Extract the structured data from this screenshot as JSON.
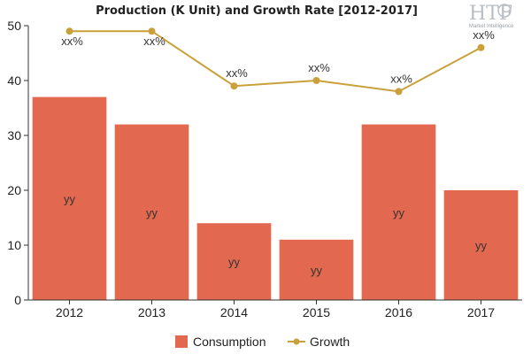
{
  "chart_data": {
    "type": "bar",
    "title": "Production (K Unit) and Growth Rate [2012-2017]",
    "categories": [
      "2012",
      "2013",
      "2014",
      "2015",
      "2016",
      "2017"
    ],
    "ylim": [
      0,
      50
    ],
    "yticks": [
      0,
      10,
      20,
      30,
      40,
      50
    ],
    "series": [
      {
        "name": "Consumption",
        "type": "bar",
        "values": [
          37,
          32,
          14,
          11,
          32,
          20
        ],
        "labels": [
          "yy",
          "yy",
          "yy",
          "yy",
          "yy",
          "yy"
        ],
        "color": "#e2694f"
      },
      {
        "name": "Growth",
        "type": "line",
        "values": [
          49,
          49,
          39,
          40,
          38,
          46
        ],
        "labels": [
          "xx%",
          "xx%",
          "xx%",
          "xx%",
          "xx%",
          "xx%"
        ],
        "color": "#c9a03a"
      }
    ],
    "legend_position": "bottom",
    "grid": false
  },
  "logo": {
    "mark": "HTF",
    "tagline": "Market Intelligence"
  }
}
